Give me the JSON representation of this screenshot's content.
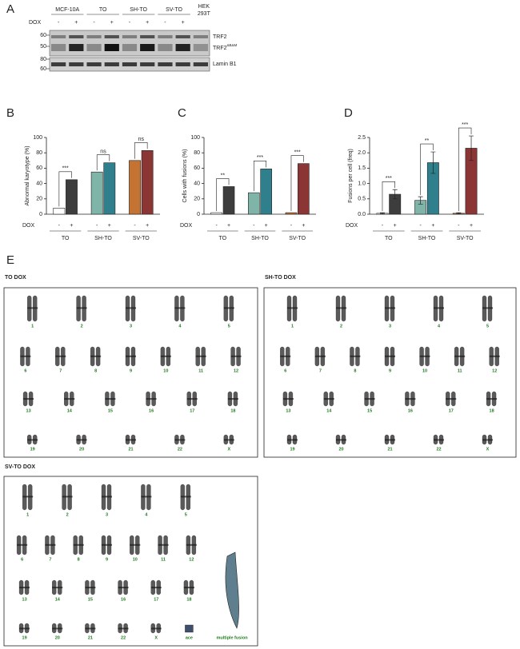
{
  "panel_labels": [
    "A",
    "B",
    "C",
    "D",
    "E"
  ],
  "blot": {
    "groups": [
      "MCF-10A",
      "TO",
      "SH-TO",
      "SV-TO",
      "HEK 293T"
    ],
    "dox_label": "DOX",
    "dox_signs": [
      "-",
      "+",
      "-",
      "+",
      "-",
      "+",
      "-",
      "+"
    ],
    "mw_markers": [
      60,
      50,
      80,
      60
    ],
    "bands": [
      "TRF2",
      "TRF2",
      "Lamin B1"
    ],
    "band_superscript": "ΔBΔM"
  },
  "chart_data": [
    {
      "type": "bar",
      "y_label": "Abnormal karyotype (%)",
      "x_label": "DOX",
      "categories": [
        "-",
        "+",
        "-",
        "+",
        "-",
        "+"
      ],
      "groups": [
        "TO",
        "SH-TO",
        "SV-TO"
      ],
      "values": [
        8,
        45,
        55,
        67,
        70,
        83
      ],
      "colors": [
        "#ffffff",
        "#3d3d3d",
        "#7fb5a8",
        "#2f7f8c",
        "#c47332",
        "#8c3535"
      ],
      "significance": [
        "***",
        "ns",
        "ns"
      ],
      "ylim": [
        0,
        100
      ],
      "yticks": [
        0,
        20,
        40,
        60,
        80,
        100
      ]
    },
    {
      "type": "bar",
      "y_label": "Cells with fusions (%)",
      "x_label": "DOX",
      "categories": [
        "-",
        "+",
        "-",
        "+",
        "-",
        "+"
      ],
      "groups": [
        "TO",
        "SH-TO",
        "SV-TO"
      ],
      "values": [
        2,
        36,
        28,
        59,
        2,
        66
      ],
      "colors": [
        "#ffffff",
        "#3d3d3d",
        "#7fb5a8",
        "#2f7f8c",
        "#c47332",
        "#8c3535"
      ],
      "significance": [
        "**",
        "***",
        "***"
      ],
      "ylim": [
        0,
        100
      ],
      "yticks": [
        0,
        20,
        40,
        60,
        80,
        100
      ]
    },
    {
      "type": "bar",
      "y_label": "Fusions per cell (freq)",
      "x_label": "DOX",
      "categories": [
        "-",
        "+",
        "-",
        "+",
        "-",
        "+"
      ],
      "groups": [
        "TO",
        "SH-TO",
        "SV-TO"
      ],
      "values": [
        0.03,
        0.65,
        0.45,
        1.68,
        0.03,
        2.15
      ],
      "errors": [
        0.02,
        0.15,
        0.12,
        0.35,
        0.02,
        0.4
      ],
      "colors": [
        "#ffffff",
        "#3d3d3d",
        "#7fb5a8",
        "#2f7f8c",
        "#c47332",
        "#8c3535"
      ],
      "significance": [
        "***",
        "**",
        "***"
      ],
      "ylim": [
        0,
        2.5
      ],
      "yticks": [
        {
          "value": 0,
          "label": "0.0"
        },
        0.5,
        {
          "value": 1,
          "label": "1.0"
        },
        1.5,
        {
          "value": 2,
          "label": "2.0"
        },
        2.5
      ]
    }
  ],
  "karyotypes": [
    {
      "title": "TO DOX",
      "labels": [
        "1",
        "2",
        "3",
        "4",
        "5",
        "6",
        "7",
        "8",
        "9",
        "10",
        "11",
        "12",
        "13",
        "14",
        "15",
        "16",
        "17",
        "18",
        "19",
        "20",
        "21",
        "22",
        "X"
      ]
    },
    {
      "title": "SH-TO DOX",
      "labels": [
        "1",
        "2",
        "3",
        "4",
        "5",
        "6",
        "7",
        "8",
        "9",
        "10",
        "11",
        "12",
        "13",
        "14",
        "15",
        "16",
        "17",
        "18",
        "19",
        "20",
        "21",
        "22",
        "X"
      ]
    },
    {
      "title": "SV-TO DOX",
      "labels": [
        "1",
        "2",
        "3",
        "4",
        "5",
        "6",
        "7",
        "8",
        "9",
        "10",
        "11",
        "12",
        "13",
        "14",
        "15",
        "16",
        "17",
        "18",
        "19",
        "20",
        "21",
        "22",
        "X"
      ],
      "extra_labels": [
        "ace",
        "multiple fusion"
      ]
    }
  ]
}
